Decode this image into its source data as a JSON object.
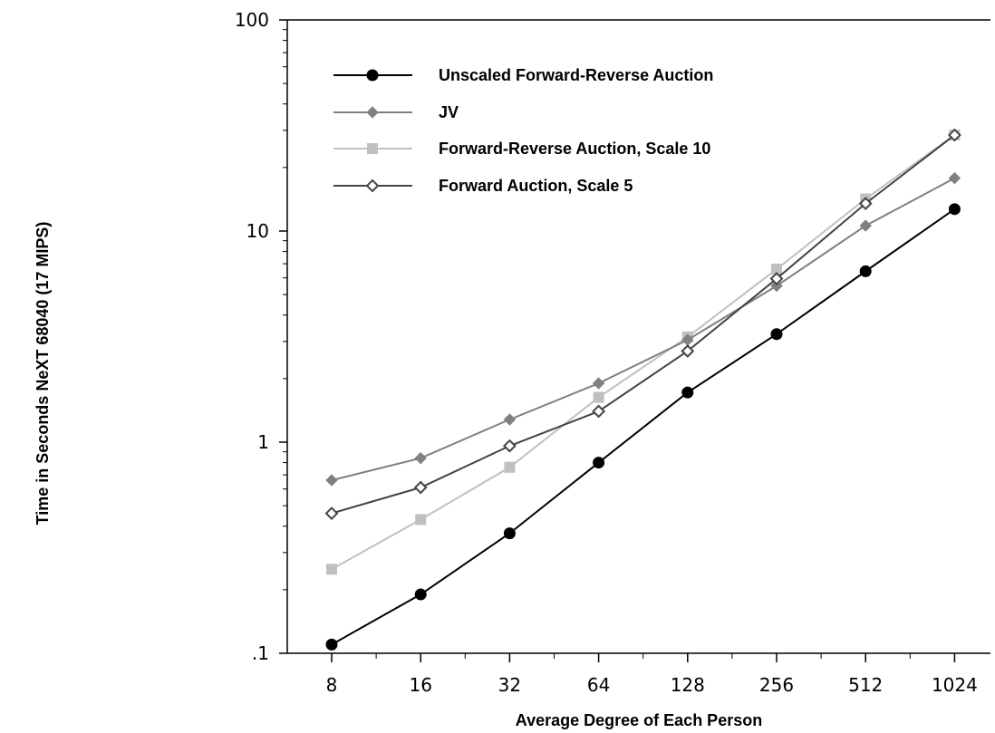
{
  "chart_data": {
    "type": "line",
    "xlabel": "Average Degree of Each Person",
    "ylabel": "Time in Seconds NeXT 68040 (17 MIPS)",
    "x_scale": "log2",
    "y_scale": "log10",
    "x": [
      8,
      16,
      32,
      64,
      128,
      256,
      512,
      1024
    ],
    "x_tick_labels": [
      "8",
      "16",
      "32",
      "64",
      "128",
      "256",
      "512",
      "1024"
    ],
    "ylim": [
      0.1,
      100
    ],
    "y_tick_labels": [
      ".1",
      "1",
      "10",
      "100"
    ],
    "legend_position": "top-left",
    "grid": false,
    "series": [
      {
        "name": "Unscaled Forward-Reverse Auction",
        "color": "#000000",
        "marker": "filled-circle",
        "values": [
          0.11,
          0.19,
          0.37,
          0.8,
          1.72,
          3.25,
          6.45,
          12.7
        ]
      },
      {
        "name": "JV",
        "color": "#808080",
        "marker": "filled-diamond",
        "values": [
          0.66,
          0.84,
          1.28,
          1.9,
          3.05,
          5.5,
          10.6,
          17.8
        ]
      },
      {
        "name": "Forward-Reverse Auction, Scale 10",
        "color": "#c0c0c0",
        "marker": "filled-square",
        "values": [
          0.25,
          0.43,
          0.76,
          1.63,
          3.15,
          6.6,
          14.2,
          28.5
        ]
      },
      {
        "name": "Forward Auction, Scale 5",
        "color": "#444444",
        "marker": "open-diamond",
        "values": [
          0.46,
          0.61,
          0.96,
          1.4,
          2.7,
          5.95,
          13.5,
          28.5
        ]
      }
    ]
  }
}
